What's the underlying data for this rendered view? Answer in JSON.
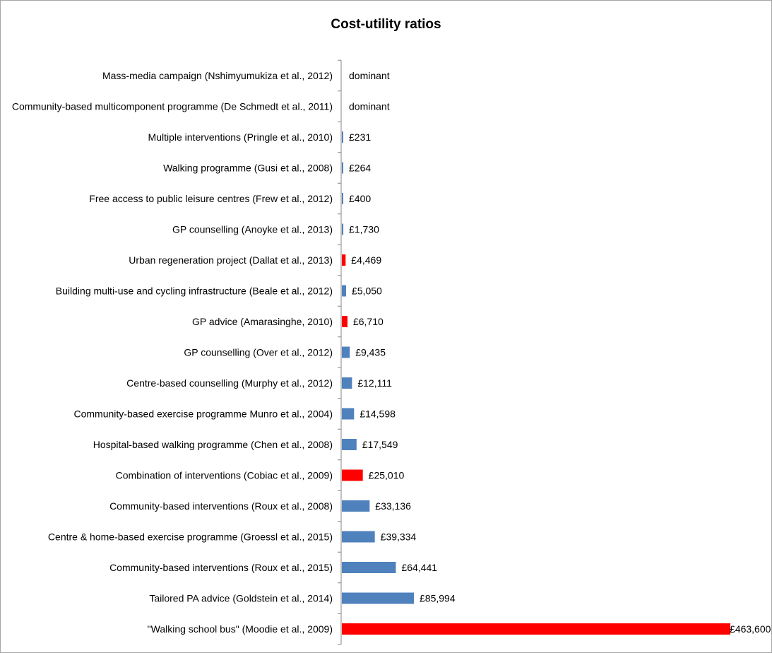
{
  "chart_data": {
    "type": "bar",
    "orientation": "horizontal",
    "title": "Cost-utility ratios",
    "xlabel": "",
    "ylabel": "",
    "xlim": [
      0,
      463600
    ],
    "grid": false,
    "legend": "none",
    "colors": {
      "default": "#4f81bd",
      "highlight": "#ff0000"
    },
    "categories": [
      "Mass-media campaign (Nshimyumukiza et al., 2012)",
      "Community-based multicomponent programme (De Schmedt et al., 2011)",
      "Multiple interventions (Pringle et al., 2010)",
      "Walking programme (Gusi et al., 2008)",
      "Free access to public leisure centres (Frew et al., 2012)",
      "GP counselling (Anoyke et al., 2013)",
      "Urban regeneration project (Dallat et al., 2013)",
      "Building multi-use and cycling infrastructure (Beale et al., 2012)",
      "GP advice (Amarasinghe, 2010)",
      "GP counselling (Over et al., 2012)",
      "Centre-based counselling (Murphy et al., 2012)",
      "Community-based exercise programme Munro et al., 2004)",
      "Hospital-based walking programme (Chen et al., 2008)",
      "Combination of interventions (Cobiac et al., 2009)",
      "Community-based interventions (Roux et al., 2008)",
      "Centre & home-based exercise programme (Groessl et al., 2015)",
      "Community-based interventions (Roux et al., 2015)",
      "Tailored PA advice (Goldstein et al., 2014)",
      "\"Walking school bus\" (Moodie et al., 2009)"
    ],
    "values": [
      0,
      0,
      231,
      264,
      400,
      1730,
      4469,
      5050,
      6710,
      9435,
      12111,
      14598,
      17549,
      25010,
      33136,
      39334,
      64441,
      85994,
      463600
    ],
    "data_labels": [
      "dominant",
      "dominant",
      "£231",
      "£264",
      "£400",
      "£1,730",
      "£4,469",
      "£5,050",
      "£6,710",
      "£9,435",
      "£12,111",
      "£14,598",
      "£17,549",
      "£25,010",
      "£33,136",
      "£39,334",
      "£64,441",
      "£85,994",
      "£463,600"
    ],
    "highlight": [
      false,
      false,
      false,
      false,
      false,
      false,
      true,
      false,
      true,
      false,
      false,
      false,
      false,
      true,
      false,
      false,
      false,
      false,
      true
    ]
  }
}
